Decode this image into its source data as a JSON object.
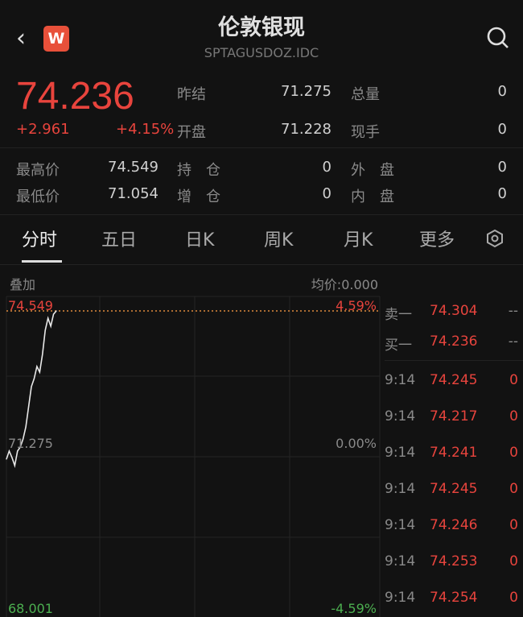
{
  "header": {
    "title": "伦敦银现",
    "code": "SPTAGUSDOZ.IDC",
    "logo": "W",
    "icons": [
      "back-chevron-icon",
      "search-icon"
    ]
  },
  "quote": {
    "price": "74.236",
    "change": "+2.961",
    "change_pct": "+4.15%",
    "fields": [
      {
        "label": "昨结",
        "value": "71.275"
      },
      {
        "label": "总量",
        "value": "0"
      },
      {
        "label": "开盘",
        "value": "71.228"
      },
      {
        "label": "现手",
        "value": "0"
      },
      {
        "label": "最高价",
        "value": "74.549"
      },
      {
        "label": "持　仓",
        "value": "0"
      },
      {
        "label": "外　盘",
        "value": "0"
      },
      {
        "label": "最低价",
        "value": "71.054"
      },
      {
        "label": "增　仓",
        "value": "0"
      },
      {
        "label": "内　盘",
        "value": "0"
      }
    ]
  },
  "tabs": [
    {
      "label": "分时"
    },
    {
      "label": "五日"
    },
    {
      "label": "日K"
    },
    {
      "label": "周K"
    },
    {
      "label": "月K"
    },
    {
      "label": "更多"
    }
  ],
  "chart_header": {
    "overlay": "叠加",
    "avg": "均价:0.000"
  },
  "chart_data": {
    "type": "line",
    "ylim": [
      68.001,
      74.549
    ],
    "y_labels_left": [
      "74.549",
      "71.275",
      "68.001"
    ],
    "y_labels_right": [
      "4.59%",
      "0.00%",
      "-4.59%"
    ],
    "reference": 71.275,
    "high_line": 74.549,
    "values": [
      71.378,
      71.551,
      71.413,
      71.241,
      71.551,
      71.637,
      71.809,
      72.068,
      72.498,
      72.929,
      73.101,
      73.36,
      73.239,
      73.618,
      74.135,
      74.394,
      74.222,
      74.48,
      74.549
    ],
    "colors": {
      "line": "#e8e8e8",
      "up": "#e8443d",
      "down": "#4caf50",
      "dashed": "#e08a3c"
    }
  },
  "orderbook": {
    "asks": [
      {
        "label": "卖一",
        "price": "74.304",
        "vol": "--"
      }
    ],
    "bids": [
      {
        "label": "买一",
        "price": "74.236",
        "vol": "--"
      }
    ],
    "ticks": [
      {
        "time": "9:14",
        "price": "74.245",
        "vol": "0"
      },
      {
        "time": "9:14",
        "price": "74.217",
        "vol": "0"
      },
      {
        "time": "9:14",
        "price": "74.241",
        "vol": "0"
      },
      {
        "time": "9:14",
        "price": "74.245",
        "vol": "0"
      },
      {
        "time": "9:14",
        "price": "74.246",
        "vol": "0"
      },
      {
        "time": "9:14",
        "price": "74.253",
        "vol": "0"
      },
      {
        "time": "9:14",
        "price": "74.254",
        "vol": "0"
      }
    ]
  }
}
